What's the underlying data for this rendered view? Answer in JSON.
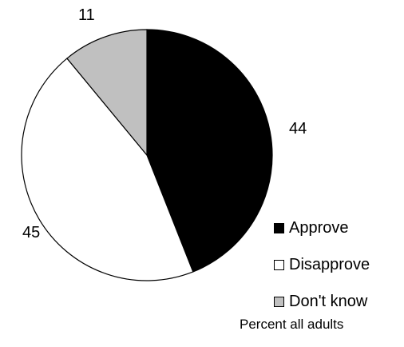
{
  "chart_data": {
    "type": "pie",
    "slices": [
      {
        "label": "Approve",
        "value": 44,
        "value_label": "44",
        "color": "#000000"
      },
      {
        "label": "Disapprove",
        "value": 45,
        "value_label": "45",
        "color": "#ffffff"
      },
      {
        "label": "Don't know",
        "value": 11,
        "value_label": "11",
        "color": "#c0c0c0"
      }
    ],
    "legend_position": "bottom-right",
    "start_angle_deg": 0,
    "direction": "clockwise",
    "caption": "Percent all adults"
  }
}
